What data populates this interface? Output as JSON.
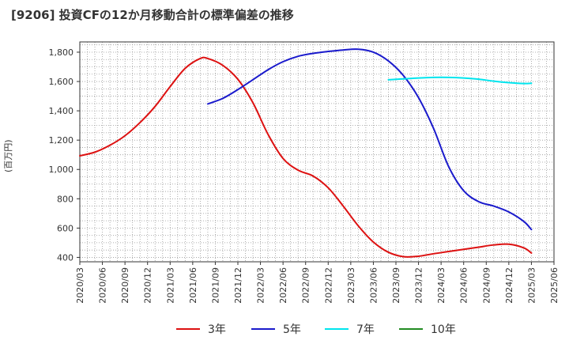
{
  "title": "[9206]  投資CFの12か月移動合計の標準偏差の推移",
  "chart_data": {
    "type": "line",
    "title": "[9206]  投資CFの12か月移動合計の標準偏差の推移",
    "ylabel": "(百万円)",
    "xlabel": "",
    "ylim": [
      370,
      1870
    ],
    "yticks": [
      400,
      600,
      800,
      1000,
      1200,
      1400,
      1600,
      1800
    ],
    "ytick_labels": [
      "400",
      "600",
      "800",
      "1,000",
      "1,200",
      "1,400",
      "1,600",
      "1,800"
    ],
    "xticks": [
      "2020/03",
      "2020/06",
      "2020/09",
      "2020/12",
      "2021/03",
      "2021/06",
      "2021/09",
      "2021/12",
      "2022/03",
      "2022/06",
      "2022/09",
      "2022/12",
      "2023/03",
      "2023/06",
      "2023/09",
      "2023/12",
      "2024/03",
      "2024/06",
      "2024/09",
      "2024/12",
      "2025/03",
      "2025/06"
    ],
    "grid": true,
    "legend_position": "bottom",
    "series": [
      {
        "name": "3年",
        "color": "#dd1111",
        "x": [
          "2020/03",
          "2020/05",
          "2020/07",
          "2020/09",
          "2020/11",
          "2021/01",
          "2021/03",
          "2021/05",
          "2021/07",
          "2021/08",
          "2021/10",
          "2021/12",
          "2022/02",
          "2022/04",
          "2022/06",
          "2022/08",
          "2022/10",
          "2022/12",
          "2023/02",
          "2023/04",
          "2023/06",
          "2023/08",
          "2023/10",
          "2023/12",
          "2024/02",
          "2024/04",
          "2024/06",
          "2024/08",
          "2024/10",
          "2024/12",
          "2025/02",
          "2025/03"
        ],
        "values": [
          1093,
          1118,
          1165,
          1230,
          1320,
          1430,
          1565,
          1690,
          1757,
          1757,
          1710,
          1615,
          1455,
          1240,
          1075,
          995,
          955,
          875,
          750,
          615,
          505,
          435,
          405,
          408,
          425,
          440,
          455,
          470,
          485,
          490,
          465,
          430
        ]
      },
      {
        "name": "5年",
        "color": "#1a1acc",
        "x": [
          "2021/08",
          "2021/10",
          "2021/12",
          "2022/02",
          "2022/04",
          "2022/06",
          "2022/08",
          "2022/10",
          "2022/12",
          "2023/02",
          "2023/04",
          "2023/06",
          "2023/08",
          "2023/10",
          "2023/12",
          "2024/02",
          "2024/04",
          "2024/06",
          "2024/08",
          "2024/10",
          "2024/12",
          "2025/02",
          "2025/03"
        ],
        "values": [
          1447,
          1485,
          1545,
          1612,
          1680,
          1735,
          1772,
          1792,
          1805,
          1815,
          1820,
          1800,
          1740,
          1640,
          1490,
          1280,
          1020,
          855,
          780,
          750,
          710,
          645,
          590
        ]
      },
      {
        "name": "7年",
        "color": "#00e5ee",
        "x": [
          "2023/08",
          "2023/10",
          "2023/12",
          "2024/02",
          "2024/04",
          "2024/06",
          "2024/08",
          "2024/10",
          "2024/12",
          "2025/02",
          "2025/03"
        ],
        "values": [
          1612,
          1618,
          1624,
          1628,
          1628,
          1624,
          1616,
          1602,
          1592,
          1586,
          1588
        ]
      },
      {
        "name": "10年",
        "color": "#228b22",
        "x": [],
        "values": []
      }
    ]
  }
}
